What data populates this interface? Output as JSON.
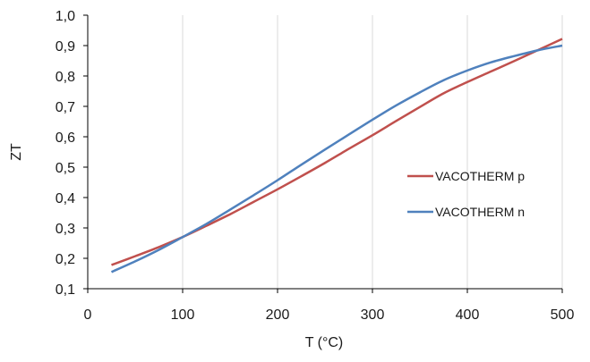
{
  "chart_data": {
    "type": "line",
    "title": "",
    "xlabel": "T (°C)",
    "ylabel": "ZT",
    "xlim": [
      0,
      500
    ],
    "ylim": [
      0.1,
      1.0
    ],
    "x_ticks": [
      "0",
      "100",
      "200",
      "300",
      "400",
      "500"
    ],
    "y_ticks": [
      "0,1",
      "0,2",
      "0,3",
      "0,4",
      "0,5",
      "0,6",
      "0,7",
      "0,8",
      "0,9",
      "1,0"
    ],
    "grid": "vertical-major",
    "legend_position": "right",
    "series": [
      {
        "name": "VACOTHERM p",
        "color": "#c0504d",
        "x": [
          25,
          50,
          75,
          100,
          125,
          150,
          175,
          200,
          225,
          250,
          275,
          300,
          325,
          350,
          375,
          400,
          425,
          450,
          475,
          500
        ],
        "y": [
          0.178,
          0.207,
          0.237,
          0.27,
          0.307,
          0.345,
          0.386,
          0.427,
          0.47,
          0.514,
          0.56,
          0.605,
          0.652,
          0.698,
          0.743,
          0.78,
          0.815,
          0.85,
          0.886,
          0.922
        ]
      },
      {
        "name": "VACOTHERM n",
        "color": "#4f81bd",
        "x": [
          25,
          50,
          75,
          100,
          125,
          150,
          175,
          200,
          225,
          250,
          275,
          300,
          325,
          350,
          375,
          400,
          425,
          450,
          475,
          500
        ],
        "y": [
          0.155,
          0.19,
          0.228,
          0.27,
          0.313,
          0.36,
          0.408,
          0.457,
          0.508,
          0.558,
          0.607,
          0.656,
          0.703,
          0.746,
          0.786,
          0.818,
          0.845,
          0.866,
          0.885,
          0.9
        ]
      }
    ]
  }
}
